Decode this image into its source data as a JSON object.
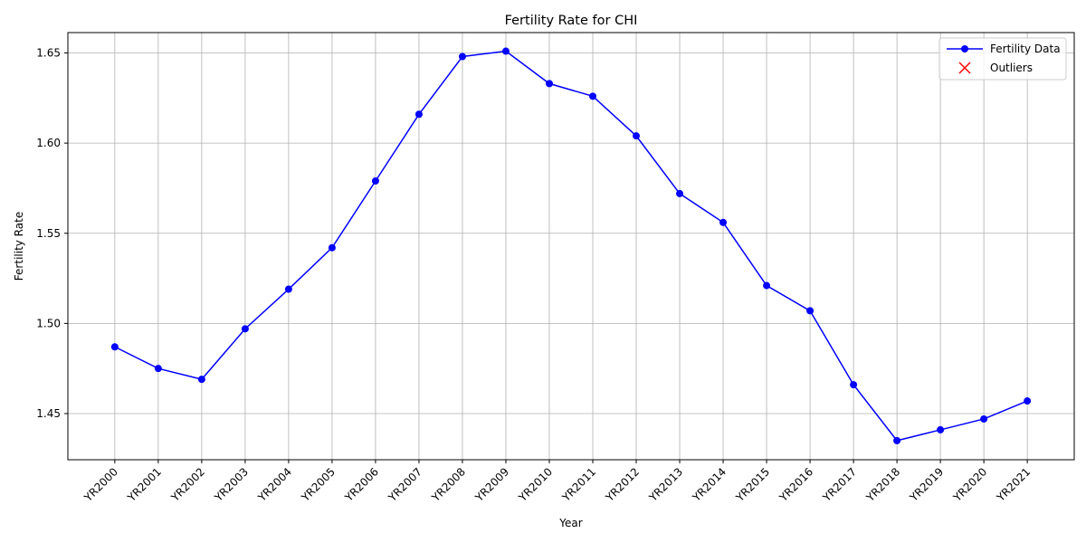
{
  "chart_data": {
    "type": "line",
    "title": "Fertility Rate for CHI",
    "xlabel": "Year",
    "ylabel": "Fertility Rate",
    "categories": [
      "YR2000",
      "YR2001",
      "YR2002",
      "YR2003",
      "YR2004",
      "YR2005",
      "YR2006",
      "YR2007",
      "YR2008",
      "YR2009",
      "YR2010",
      "YR2011",
      "YR2012",
      "YR2013",
      "YR2014",
      "YR2015",
      "YR2016",
      "YR2017",
      "YR2018",
      "YR2019",
      "YR2020",
      "YR2021"
    ],
    "series": [
      {
        "name": "Fertility Data",
        "color": "#0000ff",
        "marker": "o",
        "values": [
          1.487,
          1.475,
          1.469,
          1.497,
          1.519,
          1.542,
          1.579,
          1.616,
          1.648,
          1.651,
          1.633,
          1.626,
          1.604,
          1.572,
          1.556,
          1.521,
          1.507,
          1.466,
          1.435,
          1.441,
          1.447,
          1.457
        ]
      },
      {
        "name": "Outliers",
        "color": "#ff0000",
        "marker": "x",
        "values": [
          null,
          null,
          null,
          null,
          null,
          null,
          null,
          null,
          null,
          null,
          null,
          null,
          null,
          null,
          null,
          null,
          null,
          null,
          null,
          null,
          null,
          null
        ]
      }
    ],
    "ylim": [
      1.4244,
      1.6613
    ],
    "yticks": [
      1.45,
      {
        "value": 1.5,
        "label": "1.50"
      },
      1.55,
      {
        "value": 1.6,
        "label": "1.60"
      },
      1.65
    ],
    "grid": true,
    "legend": "upper right"
  }
}
